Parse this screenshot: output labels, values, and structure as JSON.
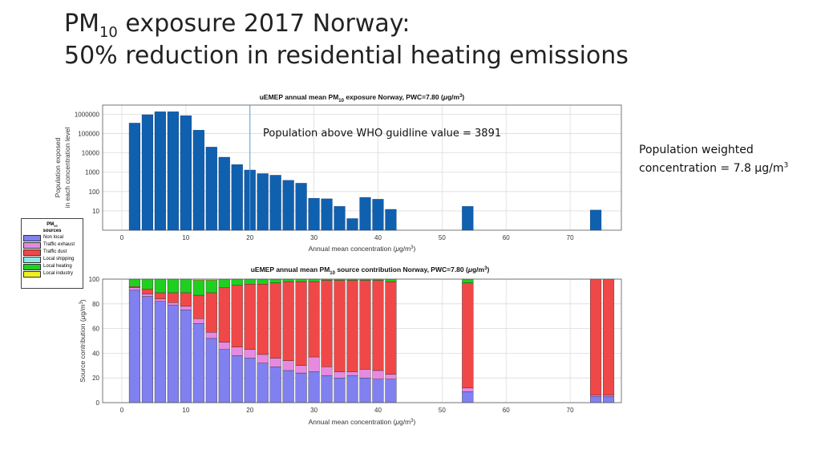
{
  "slide": {
    "title_prefix": "PM",
    "title_sub": "10",
    "title_rest": " exposure 2017 Norway:",
    "title_line2": "50% reduction in residential heating emissions",
    "note_line1": "Population weighted",
    "note_line2_prefix": "concentration =  7.8 µg/m",
    "note_line2_sup": "3"
  },
  "legend": {
    "title_prefix": "PM",
    "title_sub": "10",
    "subtitle": "sources",
    "items": [
      {
        "label": "Non local",
        "color": "#8080f0"
      },
      {
        "label": "Traffic exhaust",
        "color": "#e58ae0"
      },
      {
        "label": "Traffic dust",
        "color": "#f04848"
      },
      {
        "label": "Local shipping",
        "color": "#90e8e8"
      },
      {
        "label": "Local heating",
        "color": "#20d020"
      },
      {
        "label": "Local industry",
        "color": "#f0f020"
      }
    ]
  },
  "chart_data": [
    {
      "type": "bar",
      "title_prefix": "uEMEP annual mean PM",
      "title_sub": "10",
      "title_rest": " exposure Norway, PWC=7.80 (",
      "title_mu": "μ",
      "title_unit": "g/m",
      "title_sup": "3",
      "title_close": ")",
      "ylabel_line1": "Population exposed",
      "ylabel_line2": "in each concentration level",
      "xlabel_prefix": "Annual mean concentration (",
      "xlabel_mu": "μ",
      "xlabel_unit": "g/m",
      "xlabel_sup": "3",
      "xlabel_close": ")",
      "yscale": "log",
      "yticks": [
        10,
        100,
        1000,
        10000,
        100000,
        1000000
      ],
      "ytick_labels": [
        "10",
        "100",
        "1000",
        "10000",
        "100000",
        "1000000"
      ],
      "xticks": [
        0,
        10,
        20,
        30,
        40,
        50,
        60,
        70
      ],
      "xlim": [
        -3,
        78
      ],
      "ylim": [
        1,
        3000000
      ],
      "color": "#1060b0",
      "x": [
        2,
        4,
        6,
        8,
        10,
        12,
        14,
        16,
        18,
        20,
        22,
        24,
        26,
        28,
        30,
        32,
        34,
        36,
        38,
        40,
        42,
        54,
        74
      ],
      "values": [
        350000,
        950000,
        1350000,
        1350000,
        850000,
        150000,
        20000,
        6000,
        2500,
        1300,
        850,
        700,
        380,
        270,
        45,
        42,
        17,
        4,
        50,
        40,
        12,
        17,
        11
      ],
      "threshold_x": 20,
      "annotation": "Population above WHO guidline value = 3891",
      "grid": true
    },
    {
      "type": "bar",
      "stacked": true,
      "title_prefix": "uEMEP annual mean PM",
      "title_sub": "10",
      "title_rest": " source contribution Norway, PWC=7.80 (",
      "title_mu": "μ",
      "title_unit": "g/m",
      "title_sup": "3",
      "title_close": ")",
      "ylabel_prefix": "Source contribution (",
      "ylabel_mu": "μ",
      "ylabel_unit": "g/m",
      "ylabel_sup": "3",
      "ylabel_close": ")",
      "xlabel_prefix": "Annual mean concentration (",
      "xlabel_mu": "μ",
      "xlabel_unit": "g/m",
      "xlabel_sup": "3",
      "xlabel_close": ")",
      "yticks": [
        0,
        20,
        40,
        60,
        80,
        100
      ],
      "xticks": [
        0,
        10,
        20,
        30,
        40,
        50,
        60,
        70
      ],
      "xlim": [
        -3,
        78
      ],
      "ylim": [
        0,
        100
      ],
      "x": [
        2,
        4,
        6,
        8,
        10,
        12,
        14,
        16,
        18,
        20,
        22,
        24,
        26,
        28,
        30,
        32,
        34,
        36,
        38,
        40,
        42,
        54,
        74,
        76
      ],
      "series": [
        {
          "name": "Non local",
          "color": "#8080f0",
          "values": [
            91,
            86,
            82,
            79,
            75,
            64,
            52,
            43,
            38,
            36,
            32,
            29,
            26,
            24,
            25,
            22,
            20,
            22,
            20,
            19,
            19,
            9,
            5,
            5
          ]
        },
        {
          "name": "Traffic exhaust",
          "color": "#e58ae0",
          "values": [
            2,
            2,
            2,
            2,
            3,
            4,
            5,
            6,
            7,
            7,
            7,
            7,
            8,
            6,
            12,
            7,
            5,
            3,
            7,
            7,
            4,
            3,
            1,
            1
          ]
        },
        {
          "name": "Traffic dust",
          "color": "#f04848",
          "values": [
            1,
            4,
            5,
            8,
            11,
            19,
            32,
            44,
            50,
            53,
            57,
            61,
            64,
            68,
            61,
            70,
            74,
            74,
            72,
            73,
            75,
            85,
            94,
            94
          ]
        },
        {
          "name": "Local shipping",
          "color": "#90e8e8",
          "values": [
            0,
            0,
            0,
            0,
            0,
            0,
            0,
            0,
            0,
            0,
            0,
            0,
            0,
            0,
            0,
            0,
            0,
            0,
            0,
            0,
            0,
            0,
            0,
            0
          ]
        },
        {
          "name": "Local heating",
          "color": "#20d020",
          "values": [
            6,
            8,
            11,
            11,
            11,
            12,
            10,
            7,
            5,
            4,
            4,
            3,
            2,
            2,
            2,
            1,
            1,
            1,
            1,
            1,
            2,
            3,
            0,
            0
          ]
        },
        {
          "name": "Local industry",
          "color": "#f0f020",
          "values": [
            0,
            0,
            0,
            0,
            0,
            1,
            1,
            0,
            0,
            0,
            0,
            0,
            0,
            0,
            0,
            0,
            0,
            0,
            0,
            0,
            0,
            0,
            0,
            0
          ]
        }
      ],
      "grid": true
    }
  ]
}
